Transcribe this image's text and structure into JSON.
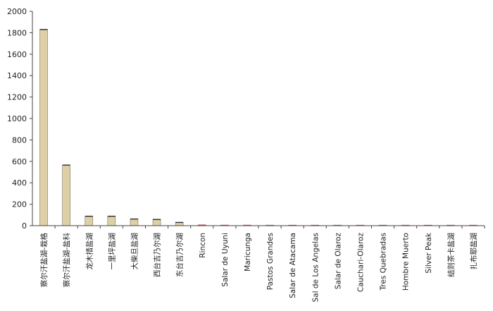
{
  "chart_data": {
    "type": "bar",
    "title": "",
    "xlabel": "",
    "ylabel": "",
    "ylim": [
      0,
      2000
    ],
    "yticks": [
      0,
      200,
      400,
      600,
      800,
      1000,
      1200,
      1400,
      1600,
      1800,
      2000
    ],
    "grid": false,
    "legend": "none",
    "categories": [
      "察尔汗盐湖-栽格",
      "察尔汗盐湖-盐科",
      "龙木措盐湖",
      "一里坪盐湖",
      "大柴旦盐湖",
      "西台吉乃尔湖",
      "东台吉乃尔湖",
      "Rincon",
      "Salar de Uyuni",
      "Maricunga",
      "Pastos Grandes",
      "Salar de Atacama",
      "Sal de Los Angelas",
      "Salar de Olaroz",
      "Cauchari-Olaroz",
      "Tres Quebradas",
      "Hombre Muerto",
      "Silver Peak",
      "结则茶卡盐湖",
      "扎布耶盐湖"
    ],
    "values": [
      1830,
      565,
      88,
      88,
      62,
      58,
      30,
      8,
      6,
      6,
      5,
      5,
      4,
      3,
      3,
      3,
      3,
      2,
      2,
      2
    ],
    "colors": {
      "bar_fill": "#ddd0a6",
      "bar_stroke": "#7a7263",
      "bar_top": "#2b2b2b",
      "low_bar": "#c24a4a",
      "axis": "#444444",
      "text": "#222222"
    }
  }
}
